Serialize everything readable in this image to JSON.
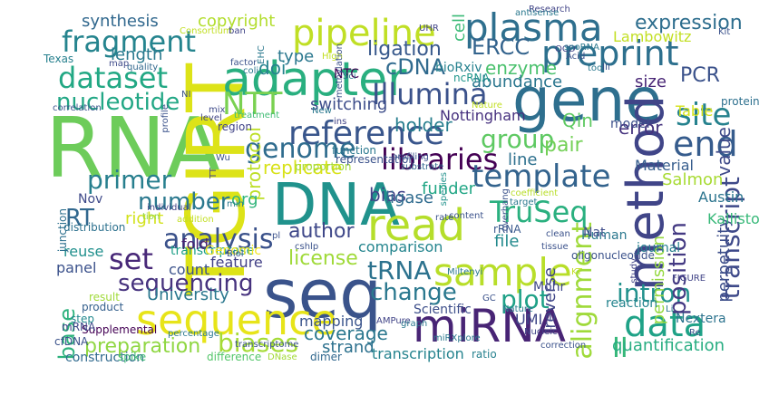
{
  "words": [
    {
      "text": "RNA",
      "color": "#6dcc5a"
    },
    {
      "text": "TGIRT",
      "color": "#dde318"
    },
    {
      "text": "seq",
      "color": "#3a538b"
    },
    {
      "text": "DNA",
      "color": "#20928c"
    },
    {
      "text": "gene",
      "color": "#2e6f8e"
    },
    {
      "text": "adapter",
      "color": "#29af7f"
    },
    {
      "text": "read",
      "color": "#b5de2b"
    },
    {
      "text": "method",
      "color": "#404588"
    },
    {
      "text": "miRNA",
      "color": "#482475"
    },
    {
      "text": "sequence",
      "color": "#e7e419"
    },
    {
      "text": "sample",
      "color": "#b8de29"
    },
    {
      "text": "plasma",
      "color": "#2e6f8e"
    },
    {
      "text": "pipeline",
      "color": "#c0df25"
    },
    {
      "text": "preprint",
      "color": "#2d708e"
    },
    {
      "text": "reference",
      "color": "#39568c"
    },
    {
      "text": "libraries",
      "color": "#440154"
    },
    {
      "text": "template",
      "color": "#33638d"
    },
    {
      "text": "dataset",
      "color": "#22a884"
    },
    {
      "text": "fragment",
      "color": "#25848e"
    },
    {
      "text": "Illumina",
      "color": "#3b528b"
    },
    {
      "text": "genome",
      "color": "#2f6c8e"
    },
    {
      "text": "TruSeq",
      "color": "#2ab07f"
    },
    {
      "text": "alignment",
      "color": "#9fda3a"
    },
    {
      "text": "transcript",
      "color": "#3e4989"
    },
    {
      "text": "analysis",
      "color": "#3b528b"
    },
    {
      "text": "sequencing",
      "color": "#46327e"
    },
    {
      "text": "biases",
      "color": "#a5db36"
    },
    {
      "text": "data",
      "color": "#1fa287"
    },
    {
      "text": "intron",
      "color": "#21918c"
    },
    {
      "text": "change",
      "color": "#2a788e"
    },
    {
      "text": "end",
      "color": "#365c8d"
    },
    {
      "text": "site",
      "color": "#26828e"
    },
    {
      "text": "group",
      "color": "#5ec962"
    },
    {
      "text": "number",
      "color": "#2a788e"
    },
    {
      "text": "primer",
      "color": "#277f8e"
    },
    {
      "text": "set",
      "color": "#482878"
    },
    {
      "text": "RT",
      "color": "#31688e"
    },
    {
      "text": "base",
      "color": "#2db27d"
    },
    {
      "text": "position",
      "color": "#443a83"
    },
    {
      "text": "II",
      "color": "#35b779"
    },
    {
      "text": "preparation",
      "color": "#90d743"
    },
    {
      "text": "tRNA",
      "color": "#2c728e"
    },
    {
      "text": "plot",
      "color": "#1fa187"
    },
    {
      "text": "NTT",
      "color": "#7ad151"
    },
    {
      "text": "cDNA",
      "color": "#306a8e"
    },
    {
      "text": "PCR",
      "color": "#3b528b"
    },
    {
      "text": "protocol",
      "color": "#bddf26"
    },
    {
      "text": "value",
      "color": "#3e4a89"
    },
    {
      "text": "expression",
      "color": "#2e6e8e"
    },
    {
      "text": "ERCC",
      "color": "#33638d"
    },
    {
      "text": "ligation",
      "color": "#38598c"
    },
    {
      "text": "cell",
      "color": "#3aba76"
    },
    {
      "text": "nucleotide",
      "color": "#22a785"
    },
    {
      "text": "doi",
      "color": "#26828e"
    },
    {
      "text": "enzyme",
      "color": "#4ac16d"
    },
    {
      "text": "abundance",
      "color": "#2a768e"
    },
    {
      "text": "error",
      "color": "#46337e"
    },
    {
      "text": "size",
      "color": "#482576"
    },
    {
      "text": "Qin",
      "color": "#5ec962"
    },
    {
      "text": "reverse",
      "color": "#404688"
    },
    {
      "text": "permission",
      "color": "#95d840"
    },
    {
      "text": "perpetuity",
      "color": "#3d4e8a"
    },
    {
      "text": "quantification",
      "color": "#27ad81"
    },
    {
      "text": "coverage",
      "color": "#2a778e"
    },
    {
      "text": "strand",
      "color": "#2d718e"
    },
    {
      "text": "license",
      "color": "#a0da39"
    },
    {
      "text": "author",
      "color": "#3f4889"
    },
    {
      "text": "holder",
      "color": "#277e8e"
    },
    {
      "text": "replicate",
      "color": "#d8e219"
    },
    {
      "text": "bias",
      "color": "#414287"
    },
    {
      "text": "pair",
      "color": "#73d056"
    },
    {
      "text": "line",
      "color": "#2d708e"
    },
    {
      "text": "funder",
      "color": "#21a685"
    },
    {
      "text": "ligase",
      "color": "#2f6b8e"
    },
    {
      "text": "file",
      "color": "#238a8d"
    },
    {
      "text": "comparison",
      "color": "#25858e"
    },
    {
      "text": "panel",
      "color": "#3b518b"
    },
    {
      "text": "feature",
      "color": "#424086"
    },
    {
      "text": "University",
      "color": "#2a778e"
    },
    {
      "text": "mapping",
      "color": "#3a548c"
    },
    {
      "text": "transcription",
      "color": "#25838e"
    },
    {
      "text": "UMI",
      "color": "#3f4788"
    },
    {
      "text": "synthesis",
      "color": "#31688e"
    },
    {
      "text": "copyright",
      "color": "#b2dd2d"
    },
    {
      "text": "length",
      "color": "#29798e"
    },
    {
      "text": "switching",
      "color": "#3d4d8a"
    },
    {
      "text": "Nottingham",
      "color": "#46307e"
    },
    {
      "text": "Lambowitz",
      "color": "#c2df23"
    },
    {
      "text": "Table",
      "color": "#d5e21a"
    },
    {
      "text": "Material",
      "color": "#365d8d"
    },
    {
      "text": "Salmon",
      "color": "#a8db34"
    },
    {
      "text": "Austin",
      "color": "#2b748e"
    },
    {
      "text": "Kallisto",
      "color": "#37b878"
    },
    {
      "text": "model",
      "color": "#3c508b"
    },
    {
      "text": "protein",
      "color": "#2d708e"
    },
    {
      "text": "bioRxiv",
      "color": "#26818e"
    },
    {
      "text": "ncRNA",
      "color": "#1f968b"
    },
    {
      "text": "NTC",
      "color": "#440154"
    },
    {
      "text": "type",
      "color": "#2a778e"
    },
    {
      "text": "org",
      "color": "#31b57b"
    },
    {
      "text": "right",
      "color": "#d2e21b"
    },
    {
      "text": "Nov",
      "color": "#3e4989"
    },
    {
      "text": "reuse",
      "color": "#21908d"
    },
    {
      "text": "step",
      "color": "#23898e"
    },
    {
      "text": "transcriptase",
      "color": "#1fa088"
    },
    {
      "text": "fold",
      "color": "#481f70"
    },
    {
      "text": "count",
      "color": "#3b528b"
    },
    {
      "text": "result",
      "color": "#a0da39"
    },
    {
      "text": "product",
      "color": "#35608d"
    },
    {
      "text": "Supplemental",
      "color": "#440154"
    },
    {
      "text": "construction",
      "color": "#306a8e"
    },
    {
      "text": "spike",
      "color": "#3fbc73"
    },
    {
      "text": "difference",
      "color": "#52c569"
    },
    {
      "text": "dimer",
      "color": "#31688e"
    },
    {
      "text": "ratio",
      "color": "#26818e"
    },
    {
      "text": "Scientific",
      "color": "#3d4e8a"
    },
    {
      "text": "Nextera",
      "color": "#2c738e"
    },
    {
      "text": "reaction",
      "color": "#25848e"
    },
    {
      "text": "Human",
      "color": "#2a778e"
    },
    {
      "text": "Mohr",
      "color": "#3f4889"
    },
    {
      "text": "Nat",
      "color": "#3e4c8a"
    },
    {
      "text": "journal",
      "color": "#277f8e"
    },
    {
      "text": "rRNA",
      "color": "#38588c"
    },
    {
      "text": "Genomic",
      "color": "#f1e51d"
    },
    {
      "text": "junction",
      "color": "#2d708e"
    },
    {
      "text": "distribution",
      "color": "#2d718e"
    },
    {
      "text": "mRNA",
      "color": "#3f4889"
    },
    {
      "text": "cfDNA",
      "color": "#3b528b"
    },
    {
      "text": "Texas",
      "color": "#27808e"
    },
    {
      "text": "map",
      "color": "#3e4989"
    },
    {
      "text": "quality",
      "color": "#31688e"
    },
    {
      "text": "correlation",
      "color": "#3a548c"
    },
    {
      "text": "mix",
      "color": "#3e4a89"
    },
    {
      "text": "level",
      "color": "#414487"
    },
    {
      "text": "region",
      "color": "#414487"
    },
    {
      "text": "treatment",
      "color": "#3fbc73"
    },
    {
      "text": "proportion",
      "color": "#a2da37"
    },
    {
      "text": "function",
      "color": "#2a788e"
    },
    {
      "text": "representation",
      "color": "#3b528b"
    },
    {
      "text": "substrate",
      "color": "#31688e"
    },
    {
      "text": "profiling",
      "color": "#3b528b"
    },
    {
      "text": "species",
      "color": "#21918c"
    },
    {
      "text": "overhang",
      "color": "#3b528b"
    },
    {
      "text": "coefficient",
      "color": "#b8de29"
    },
    {
      "text": "target",
      "color": "#2a788e"
    },
    {
      "text": "clean",
      "color": "#3b528b"
    },
    {
      "text": "oligonucleotide",
      "color": "#3b528b"
    },
    {
      "text": "study",
      "color": "#414487"
    },
    {
      "text": "FIGURE",
      "color": "#414487"
    },
    {
      "text": "Li",
      "color": "#2a788e"
    },
    {
      "text": "Re",
      "color": "#3b528b"
    },
    {
      "text": "miRXplore",
      "color": "#2a788e"
    },
    {
      "text": "correction",
      "color": "#3b528b"
    },
    {
      "text": "Nature",
      "color": "#2a788e"
    },
    {
      "text": "Nucleic",
      "color": "#414487"
    },
    {
      "text": "DNase",
      "color": "#a2da37"
    },
    {
      "text": "transcriptome",
      "color": "#3b528b"
    },
    {
      "text": "percentage",
      "color": "#2a788e"
    },
    {
      "text": "Biol",
      "color": "#3b528b"
    },
    {
      "text": "AMPure",
      "color": "#414487"
    },
    {
      "text": "graph",
      "color": "#2a788e"
    },
    {
      "text": "GC",
      "color": "#3b528b"
    },
    {
      "text": "rate",
      "color": "#3b528b"
    },
    {
      "text": "content",
      "color": "#3b528b"
    },
    {
      "text": "addition",
      "color": "#c2df23"
    },
    {
      "text": "individual",
      "color": "#414487"
    },
    {
      "text": "tion",
      "color": "#8fd744"
    },
    {
      "text": "min",
      "color": "#2a788e"
    },
    {
      "text": "pl",
      "color": "#3b528b"
    },
    {
      "text": "TT",
      "color": "#414487"
    },
    {
      "text": "Wu",
      "color": "#3b528b"
    },
    {
      "text": "cshlp",
      "color": "#3b528b"
    },
    {
      "text": "Miltenyi",
      "color": "#2a788e"
    },
    {
      "text": "tissue",
      "color": "#3b528b"
    },
    {
      "text": "KT",
      "color": "#c2df23"
    },
    {
      "text": "Research",
      "color": "#414487"
    },
    {
      "text": "antisense",
      "color": "#2a788e"
    },
    {
      "text": "Kit",
      "color": "#3b528b"
    },
    {
      "text": "OCD",
      "color": "#414487"
    },
    {
      "text": "snoRNA",
      "color": "#2a788e"
    },
    {
      "text": "Acid",
      "color": "#3b528b"
    },
    {
      "text": "tool",
      "color": "#2a788e"
    },
    {
      "text": "III",
      "color": "#3b528b"
    },
    {
      "text": "Consortium",
      "color": "#c2df23"
    },
    {
      "text": "ban",
      "color": "#414487"
    },
    {
      "text": "EHC",
      "color": "#2a788e"
    },
    {
      "text": "factor",
      "color": "#3b528b"
    },
    {
      "text": "coli",
      "color": "#2a788e"
    },
    {
      "text": "High",
      "color": "#c2df23"
    },
    {
      "text": "methylation",
      "color": "#3b528b"
    },
    {
      "text": "UHR",
      "color": "#414487"
    },
    {
      "text": "Sci",
      "color": "#2a788e"
    },
    {
      "text": "NI",
      "color": "#3b528b"
    },
    {
      "text": "profile",
      "color": "#3b528b"
    },
    {
      "text": "New",
      "color": "#2a788e"
    },
    {
      "text": "ins",
      "color": "#414487"
    },
    {
      "text": "Nature",
      "color": "#c2df23"
    }
  ]
}
